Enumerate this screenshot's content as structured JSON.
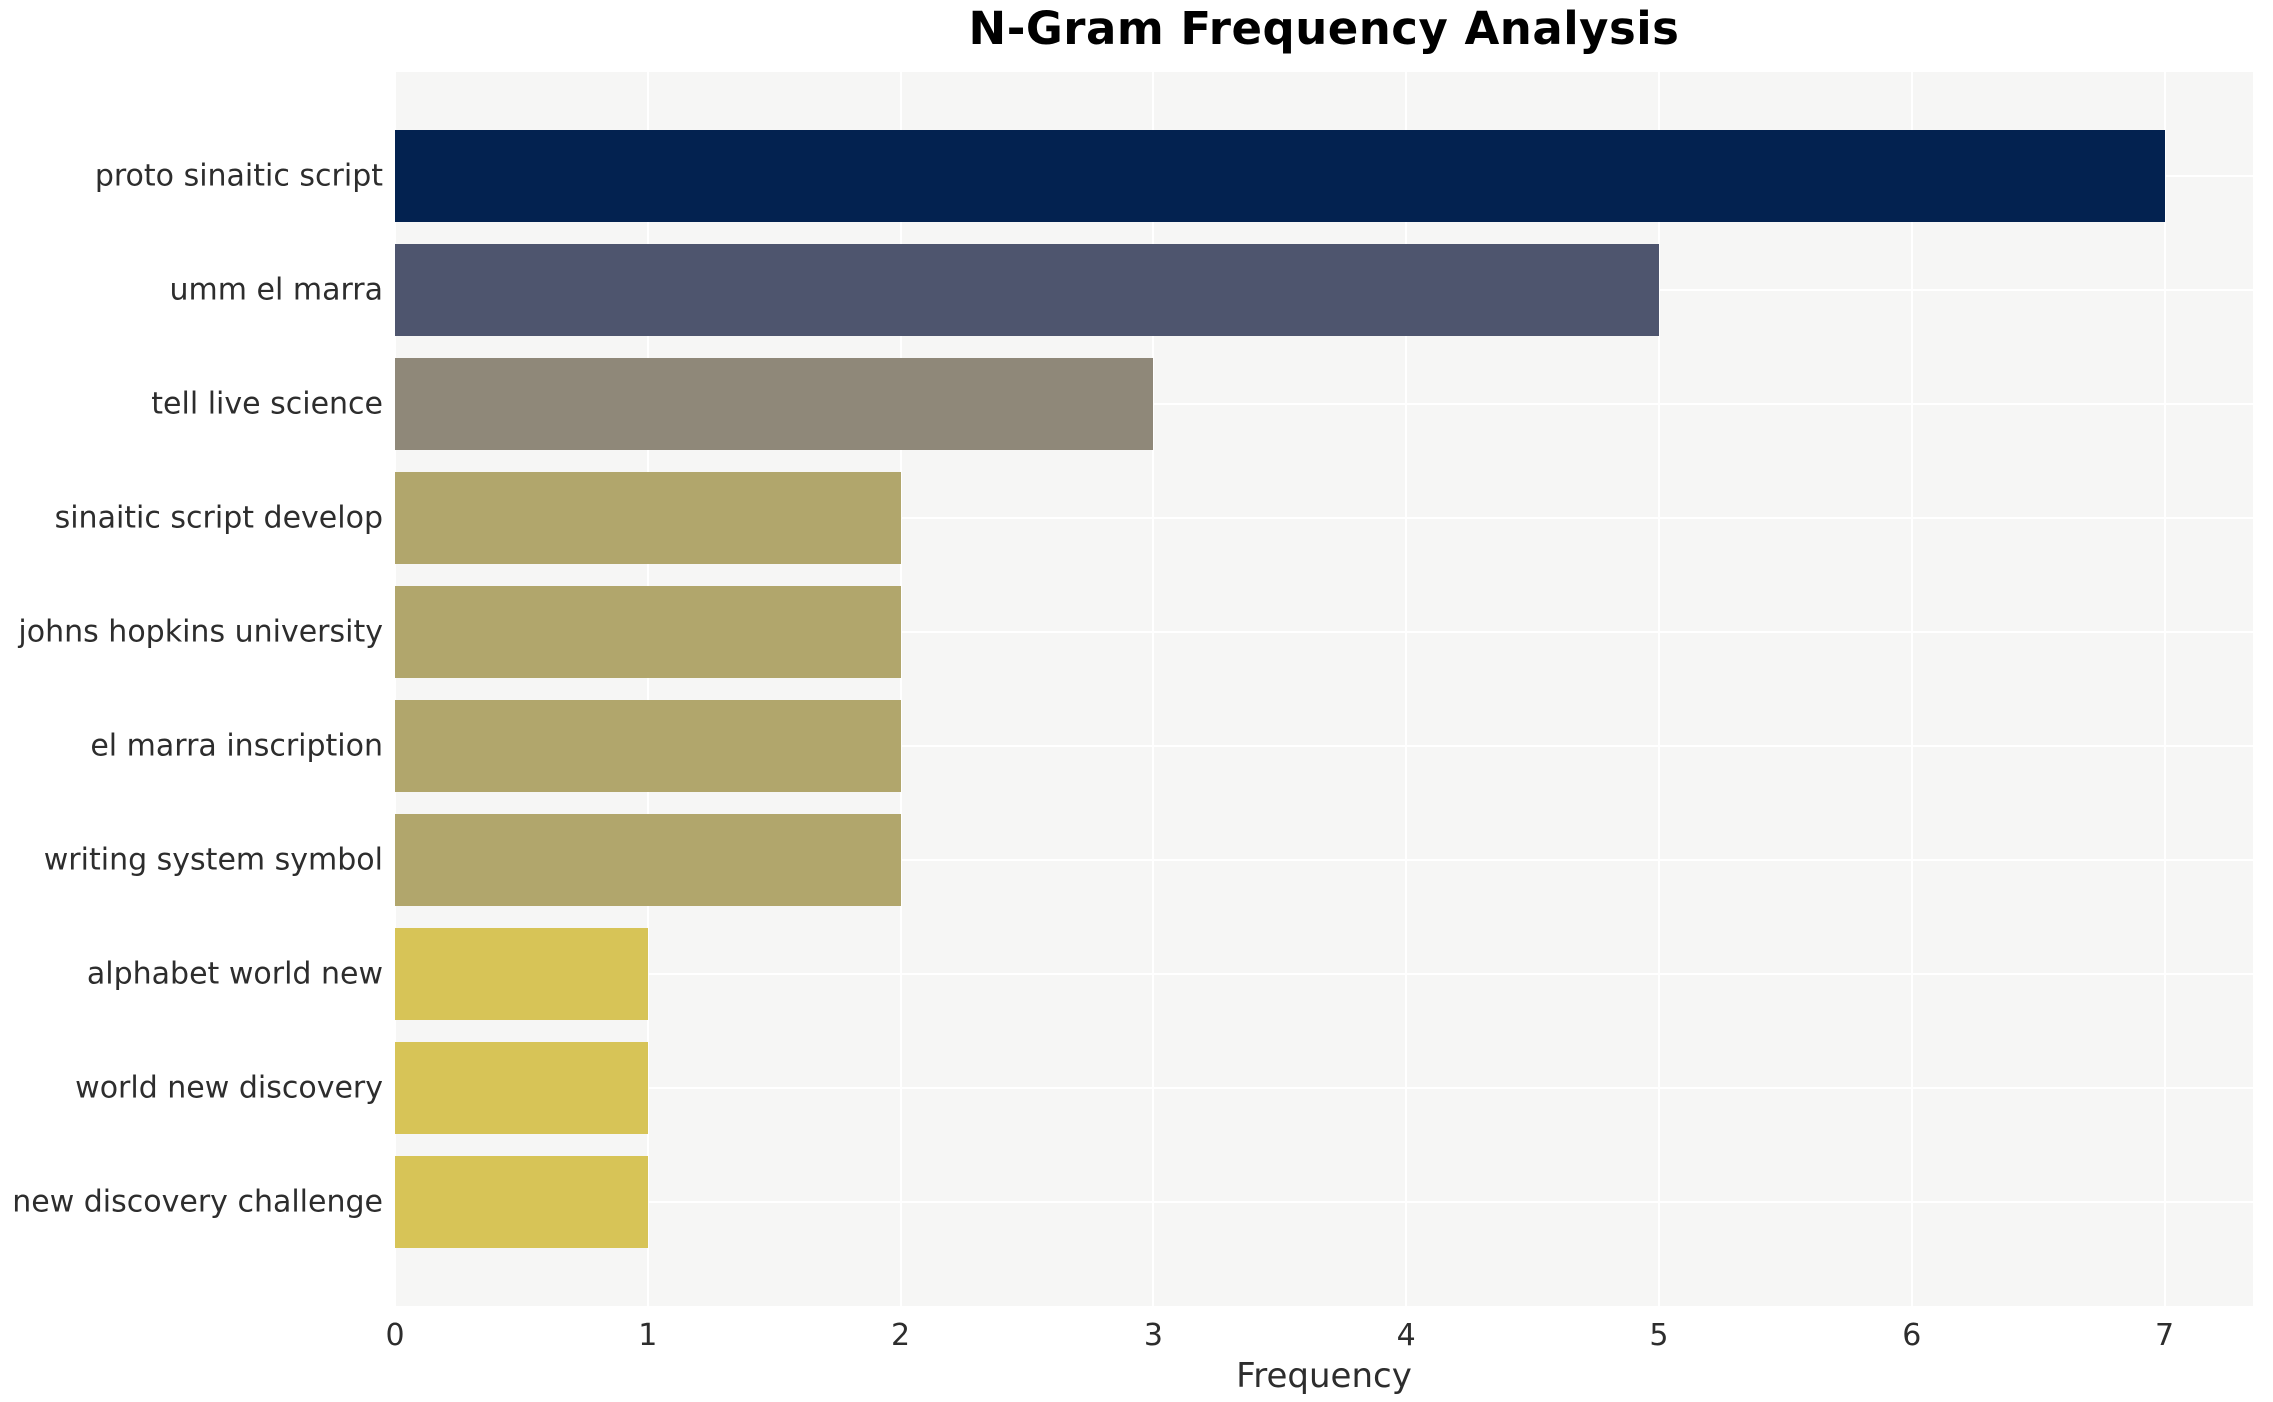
{
  "chart_data": {
    "type": "bar",
    "orientation": "horizontal",
    "title": "N-Gram Frequency Analysis",
    "xlabel": "Frequency",
    "ylabel": "",
    "categories": [
      "proto sinaitic script",
      "umm el marra",
      "tell live science",
      "sinaitic script develop",
      "johns hopkins university",
      "el marra inscription",
      "writing system symbol",
      "alphabet world new",
      "world new discovery",
      "new discovery challenge"
    ],
    "values": [
      7,
      5,
      3,
      2,
      2,
      2,
      2,
      1,
      1,
      1
    ],
    "bar_colors": [
      "#032250",
      "#4e556e",
      "#8f8879",
      "#b1a66c",
      "#b1a66c",
      "#b1a66c",
      "#b1a66c",
      "#d7c457",
      "#d7c457",
      "#d7c457"
    ],
    "xticks": [
      0,
      1,
      2,
      3,
      4,
      5,
      6,
      7
    ],
    "xlim": [
      0,
      7.35
    ],
    "grid": true,
    "legend": "none",
    "plot_background": "#f6f6f5",
    "grid_color": "#ffffff",
    "text_color": "#2d2d2d",
    "title_color": "#000000"
  }
}
